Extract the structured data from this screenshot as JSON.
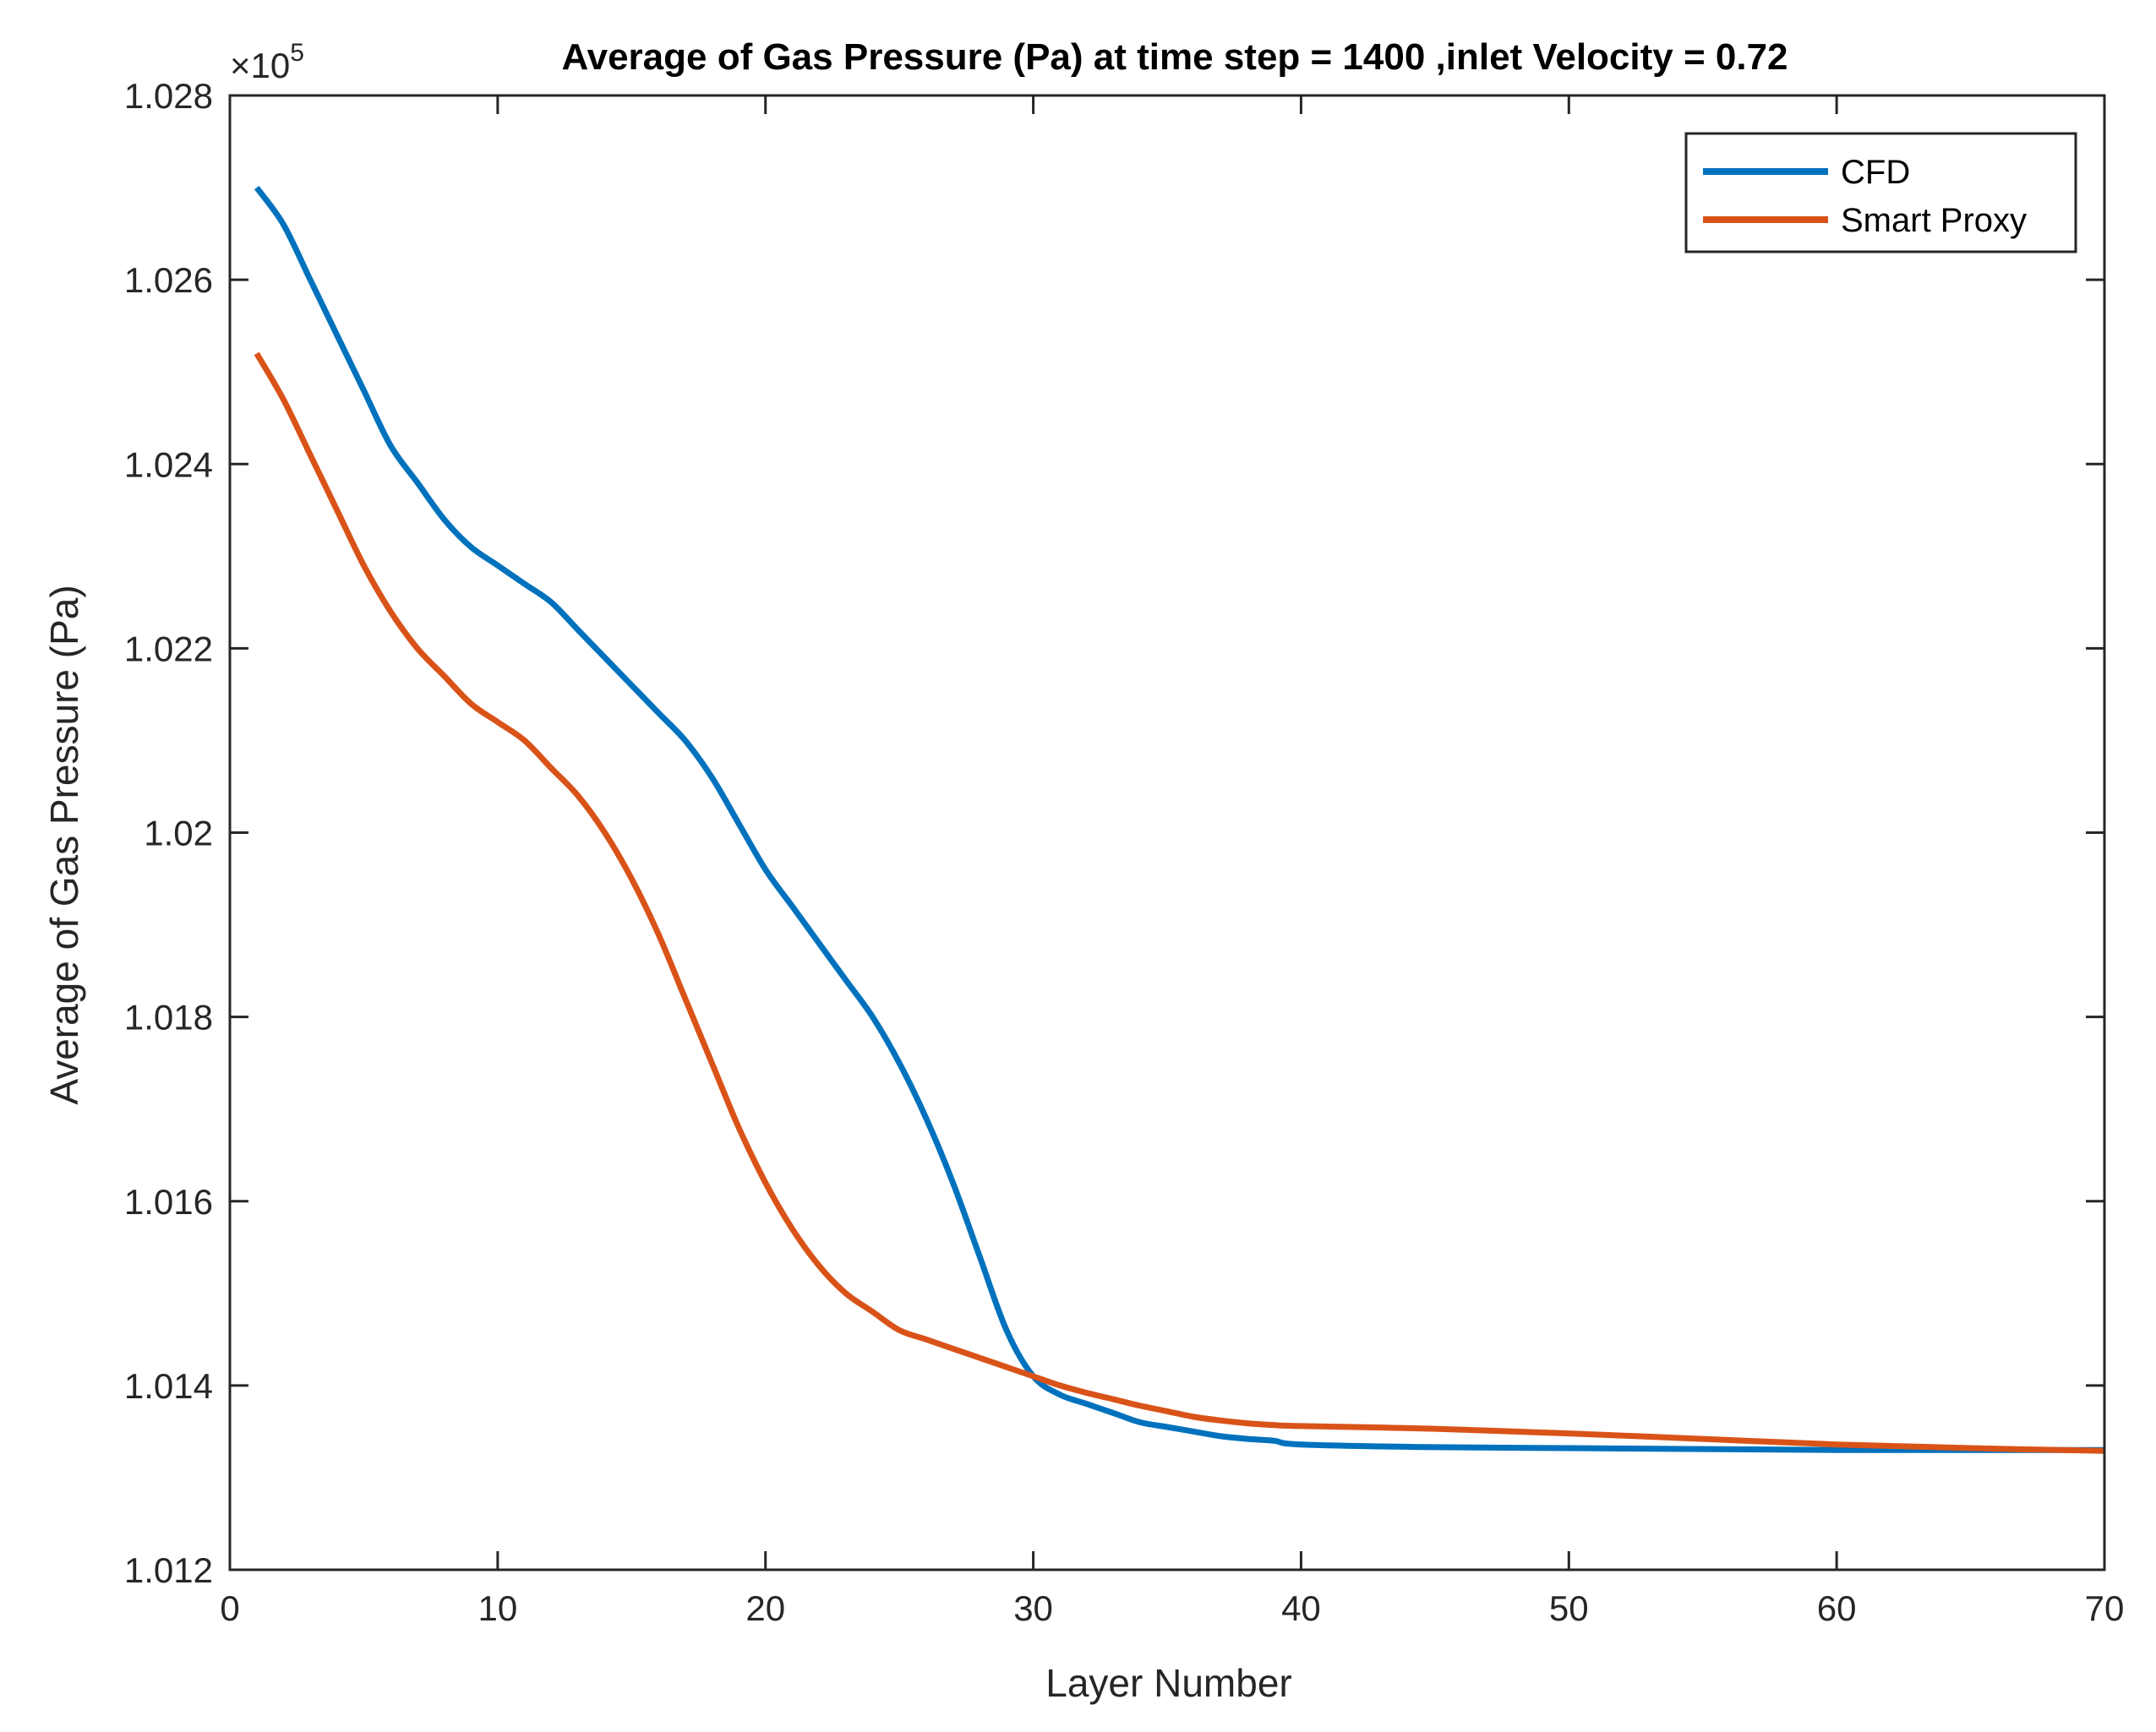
{
  "chart_data": {
    "type": "line",
    "title": "Average of Gas Pressure (Pa) at time step = 1400 ,inlet Velocity = 0.72",
    "xlabel": "Layer Number",
    "ylabel": "Average of Gas Pressure (Pa)",
    "xlim": [
      0,
      70
    ],
    "ylim": [
      1.012,
      1.028
    ],
    "y_multiplier": "×10",
    "y_multiplier_exponent": "5",
    "xticks": [
      0,
      10,
      20,
      30,
      40,
      50,
      60,
      70
    ],
    "xtick_labels": [
      "0",
      "10",
      "20",
      "30",
      "40",
      "50",
      "60",
      "70"
    ],
    "yticks": [
      1.012,
      1.014,
      1.016,
      1.018,
      1.02,
      1.022,
      1.024,
      1.026,
      1.028
    ],
    "ytick_labels": [
      "1.012",
      "1.014",
      "1.016",
      "1.018",
      "1.02",
      "1.022",
      "1.024",
      "1.026",
      "1.028"
    ],
    "grid": false,
    "legend_position": "top-right",
    "series": [
      {
        "name": "CFD",
        "color": "#0072BD",
        "x": [
          1,
          2,
          3,
          4,
          5,
          6,
          7,
          8,
          9,
          10,
          11,
          12,
          13,
          14,
          15,
          16,
          17,
          18,
          19,
          20,
          21,
          22,
          23,
          24,
          25,
          26,
          27,
          28,
          29,
          30,
          31,
          32,
          33,
          34,
          35,
          36,
          37,
          38,
          39,
          40,
          45,
          50,
          55,
          60,
          65,
          70
        ],
        "values": [
          1.027,
          1.0266,
          1.026,
          1.0254,
          1.0248,
          1.0242,
          1.0238,
          1.0234,
          1.0231,
          1.0229,
          1.0227,
          1.0225,
          1.0222,
          1.0219,
          1.0216,
          1.0213,
          1.021,
          1.0206,
          1.0201,
          1.0196,
          1.0192,
          1.0188,
          1.0184,
          1.018,
          1.0175,
          1.0169,
          1.0162,
          1.0154,
          1.0146,
          1.0141,
          1.0139,
          1.0138,
          1.0137,
          1.0136,
          1.01355,
          1.0135,
          1.01345,
          1.01342,
          1.0134,
          1.01336,
          1.01333,
          1.01332,
          1.01331,
          1.0133,
          1.0133,
          1.0133
        ]
      },
      {
        "name": "Smart Proxy",
        "color": "#D95319",
        "x": [
          1,
          2,
          3,
          4,
          5,
          6,
          7,
          8,
          9,
          10,
          11,
          12,
          13,
          14,
          15,
          16,
          17,
          18,
          19,
          20,
          21,
          22,
          23,
          24,
          25,
          26,
          27,
          28,
          29,
          30,
          31,
          32,
          33,
          34,
          35,
          36,
          37,
          38,
          39,
          40,
          45,
          50,
          55,
          60,
          65,
          70
        ],
        "values": [
          1.0252,
          1.0247,
          1.0241,
          1.0235,
          1.0229,
          1.0224,
          1.022,
          1.0217,
          1.0214,
          1.0212,
          1.021,
          1.0207,
          1.0204,
          1.02,
          1.0195,
          1.0189,
          1.0182,
          1.0175,
          1.0168,
          1.0162,
          1.0157,
          1.0153,
          1.015,
          1.0148,
          1.0146,
          1.0145,
          1.0144,
          1.0143,
          1.0142,
          1.0141,
          1.014,
          1.01392,
          1.01385,
          1.01378,
          1.01372,
          1.01366,
          1.01362,
          1.01359,
          1.01357,
          1.01356,
          1.01353,
          1.01348,
          1.01342,
          1.01336,
          1.01332,
          1.01329
        ]
      }
    ]
  }
}
